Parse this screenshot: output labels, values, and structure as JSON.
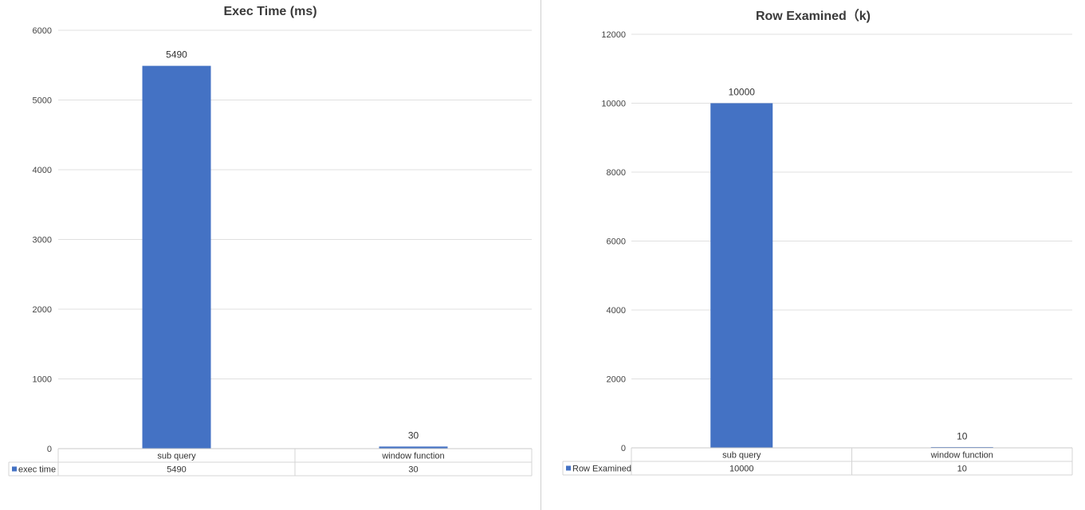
{
  "chart_data": [
    {
      "type": "bar",
      "title": "Exec Time (ms)",
      "categories": [
        "sub query",
        "window function"
      ],
      "series": [
        {
          "name": "exec time",
          "values": [
            5490,
            30
          ],
          "color": "#4472c4"
        }
      ],
      "y_ticks": [
        "0",
        "1000",
        "2000",
        "3000",
        "4000",
        "5000",
        "6000"
      ],
      "ylim": [
        0,
        6000
      ],
      "data_labels": [
        "5490",
        "30"
      ],
      "table_values": [
        "5490",
        "30"
      ],
      "grid": true,
      "legend": "data-table-left"
    },
    {
      "type": "bar",
      "title": "Row Examined（k)",
      "categories": [
        "sub query",
        "window function"
      ],
      "series": [
        {
          "name": "Row Examined",
          "values": [
            10000,
            10
          ],
          "color": "#4472c4"
        }
      ],
      "y_ticks": [
        "0",
        "2000",
        "4000",
        "6000",
        "8000",
        "10000",
        "12000"
      ],
      "ylim": [
        0,
        12000
      ],
      "data_labels": [
        "10000",
        "10"
      ],
      "table_values": [
        "10000",
        "10"
      ],
      "grid": true,
      "legend": "data-table-left"
    }
  ]
}
